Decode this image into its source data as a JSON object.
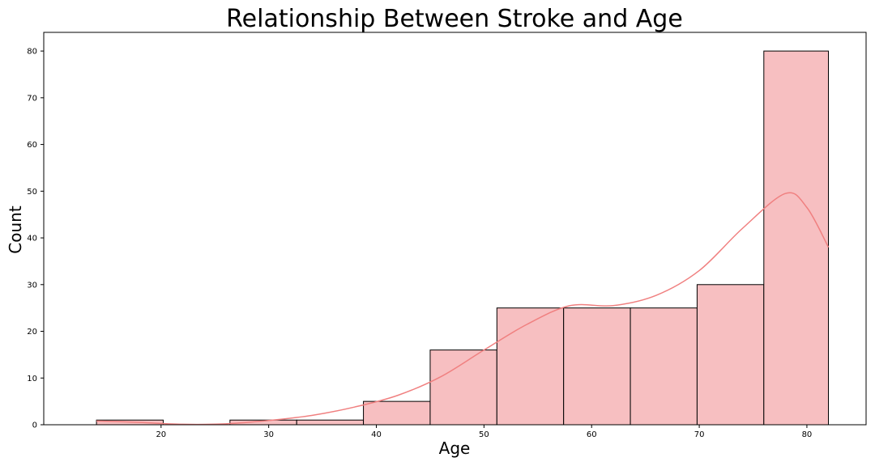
{
  "chart_data": {
    "type": "bar",
    "title": "Relationship Between Stroke and Age",
    "xlabel": "Age",
    "ylabel": "Count",
    "xlim": [
      9.1,
      85.5
    ],
    "ylim": [
      0,
      84
    ],
    "bin_edges": [
      14,
      20.2,
      26.4,
      32.6,
      38.8,
      45,
      51.2,
      57.4,
      63.6,
      69.8,
      76,
      82
    ],
    "counts": [
      1,
      0,
      1,
      1,
      5,
      16,
      25,
      25,
      25,
      30,
      80
    ],
    "x_ticks": [
      20,
      30,
      40,
      50,
      60,
      70,
      80
    ],
    "y_ticks": [
      0,
      10,
      20,
      30,
      40,
      50,
      60,
      70,
      80
    ],
    "kde": {
      "x": [
        14,
        18,
        22,
        26,
        30,
        34,
        38,
        42,
        46,
        50,
        54,
        58,
        62,
        66,
        70,
        74,
        78,
        80,
        82
      ],
      "y": [
        0.8,
        0.5,
        0.1,
        0.2,
        0.9,
        2.0,
        3.8,
        6.3,
        10.3,
        16.0,
        21.5,
        25.5,
        25.5,
        27.7,
        33.0,
        42.0,
        49.5,
        46.5,
        38.0
      ]
    },
    "grid": false,
    "bar_color": "#f7bfc1",
    "bar_edge_color": "#000000",
    "kde_color": "#f08080"
  }
}
